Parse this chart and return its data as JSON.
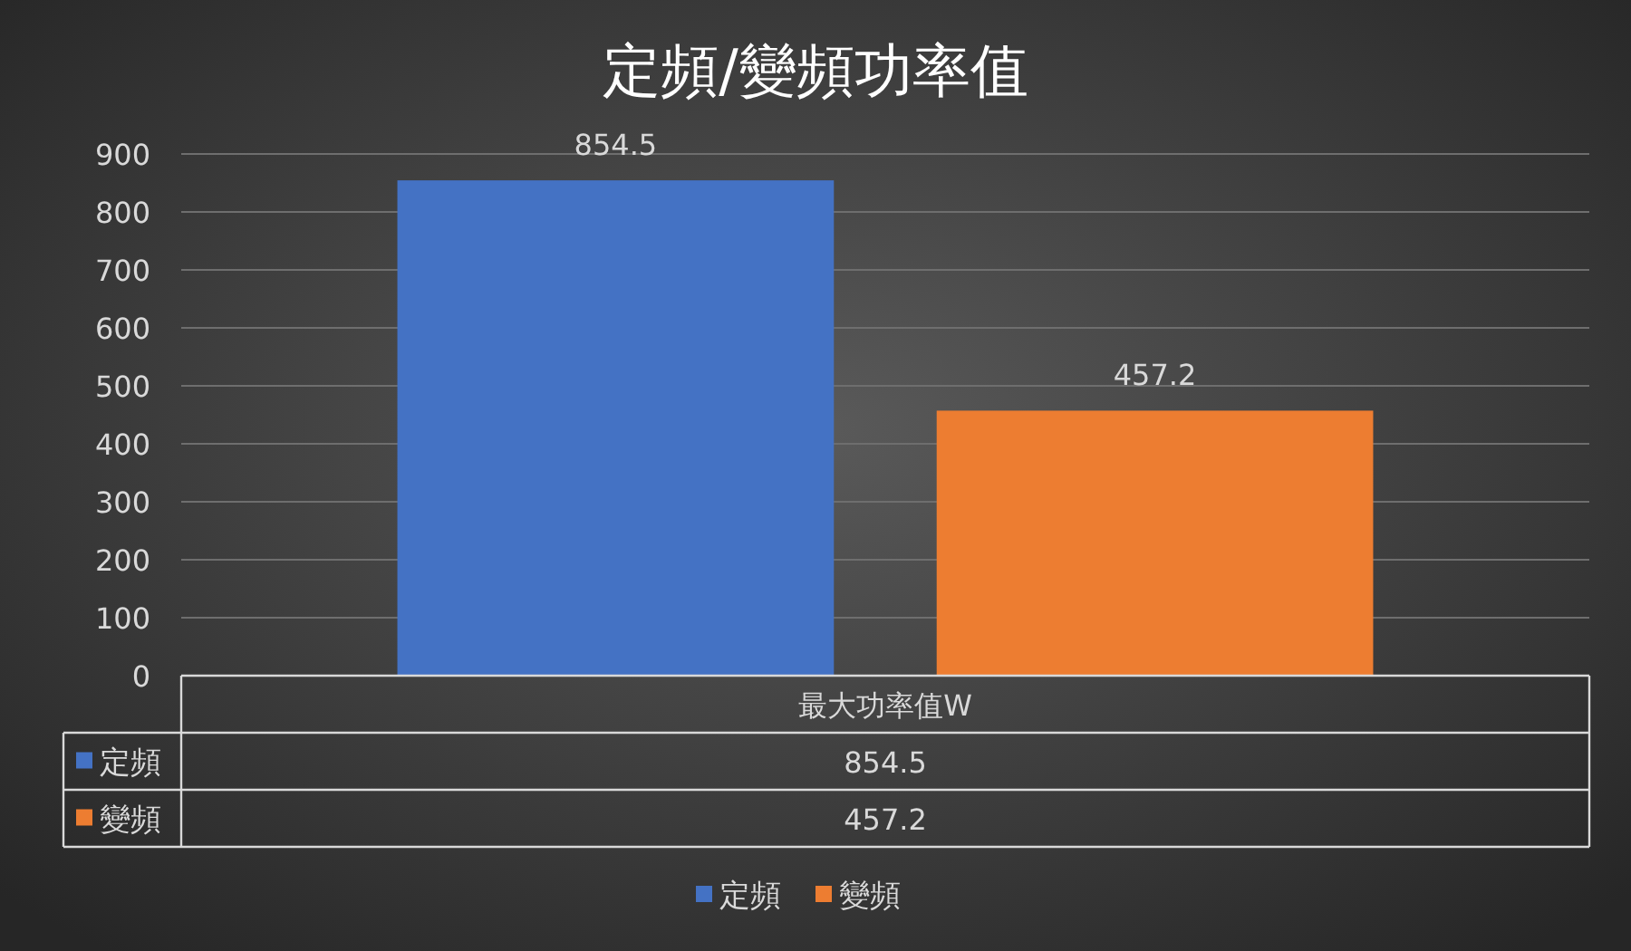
{
  "chart_data": {
    "type": "bar",
    "title": "定頻/變頻功率值",
    "categories": [
      "最大功率值W"
    ],
    "series": [
      {
        "name": "定頻",
        "color": "#4472c4",
        "values": [
          854.5
        ]
      },
      {
        "name": "變頻",
        "color": "#ed7d31",
        "values": [
          457.2
        ]
      }
    ],
    "annotations": [
      "854.5",
      "457.2"
    ],
    "ylim": [
      0,
      900
    ],
    "yticks": [
      0,
      100,
      200,
      300,
      400,
      500,
      600,
      700,
      800,
      900
    ],
    "grid": "y",
    "data_labels": true,
    "legend": "bottom"
  }
}
